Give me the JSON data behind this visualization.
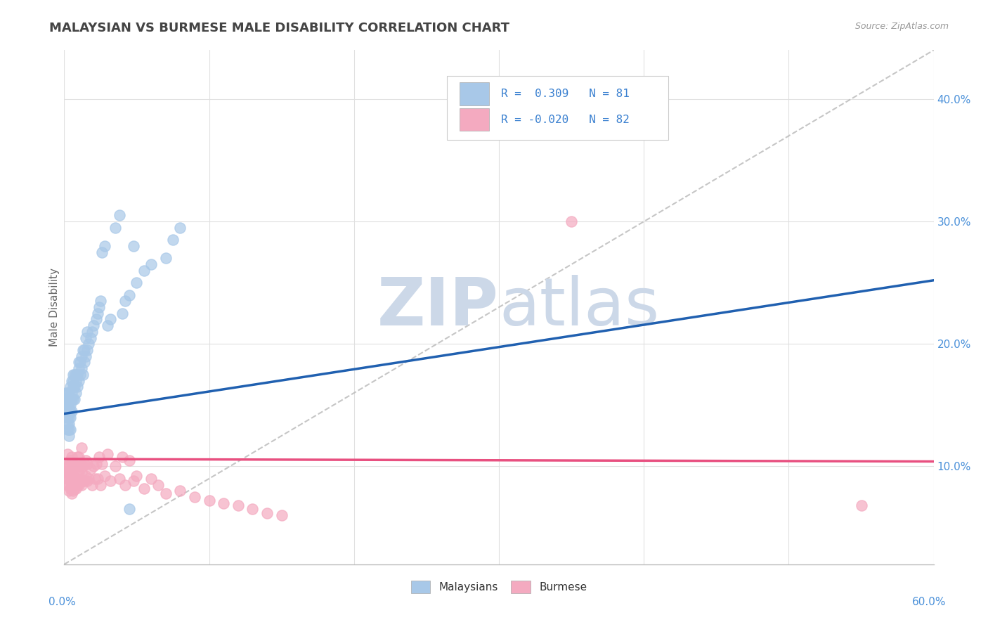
{
  "title": "MALAYSIAN VS BURMESE MALE DISABILITY CORRELATION CHART",
  "source_text": "Source: ZipAtlas.com",
  "ylabel": "Male Disability",
  "xlim": [
    0.0,
    0.6
  ],
  "ylim": [
    0.02,
    0.44
  ],
  "yticks": [
    0.1,
    0.2,
    0.3,
    0.4
  ],
  "ytick_labels": [
    "10.0%",
    "20.0%",
    "30.0%",
    "40.0%"
  ],
  "legend_r_malaysian": "0.309",
  "legend_n_malaysian": "81",
  "legend_r_burmese": "-0.020",
  "legend_n_burmese": "82",
  "malaysian_color": "#a8c8e8",
  "burmese_color": "#f4aac0",
  "trend_malaysian_color": "#2060b0",
  "trend_burmese_color": "#e85080",
  "ref_line_color": "#b8b8b8",
  "watermark_color": "#ccd8e8",
  "background_color": "#ffffff",
  "grid_color": "#e0e0e0",
  "malaysian_x": [
    0.001,
    0.001,
    0.001,
    0.001,
    0.002,
    0.002,
    0.002,
    0.002,
    0.002,
    0.002,
    0.002,
    0.003,
    0.003,
    0.003,
    0.003,
    0.003,
    0.003,
    0.003,
    0.003,
    0.004,
    0.004,
    0.004,
    0.004,
    0.004,
    0.004,
    0.005,
    0.005,
    0.005,
    0.005,
    0.006,
    0.006,
    0.006,
    0.006,
    0.007,
    0.007,
    0.007,
    0.008,
    0.008,
    0.008,
    0.009,
    0.009,
    0.01,
    0.01,
    0.01,
    0.011,
    0.011,
    0.012,
    0.012,
    0.013,
    0.013,
    0.014,
    0.014,
    0.015,
    0.015,
    0.016,
    0.016,
    0.017,
    0.018,
    0.019,
    0.02,
    0.022,
    0.023,
    0.024,
    0.025,
    0.026,
    0.028,
    0.03,
    0.032,
    0.035,
    0.038,
    0.04,
    0.042,
    0.045,
    0.048,
    0.05,
    0.055,
    0.06,
    0.07,
    0.075,
    0.08,
    0.045
  ],
  "malaysian_y": [
    0.145,
    0.15,
    0.155,
    0.16,
    0.13,
    0.135,
    0.14,
    0.145,
    0.15,
    0.155,
    0.16,
    0.125,
    0.13,
    0.135,
    0.14,
    0.145,
    0.15,
    0.155,
    0.16,
    0.13,
    0.14,
    0.145,
    0.15,
    0.155,
    0.165,
    0.145,
    0.155,
    0.16,
    0.17,
    0.155,
    0.165,
    0.17,
    0.175,
    0.155,
    0.165,
    0.175,
    0.16,
    0.17,
    0.175,
    0.165,
    0.175,
    0.17,
    0.18,
    0.185,
    0.175,
    0.185,
    0.18,
    0.19,
    0.175,
    0.195,
    0.185,
    0.195,
    0.19,
    0.205,
    0.195,
    0.21,
    0.2,
    0.205,
    0.21,
    0.215,
    0.22,
    0.225,
    0.23,
    0.235,
    0.275,
    0.28,
    0.215,
    0.22,
    0.295,
    0.305,
    0.225,
    0.235,
    0.24,
    0.28,
    0.25,
    0.26,
    0.265,
    0.27,
    0.285,
    0.295,
    0.065
  ],
  "burmese_x": [
    0.001,
    0.001,
    0.002,
    0.002,
    0.002,
    0.002,
    0.002,
    0.003,
    0.003,
    0.003,
    0.003,
    0.003,
    0.004,
    0.004,
    0.004,
    0.004,
    0.005,
    0.005,
    0.005,
    0.005,
    0.006,
    0.006,
    0.006,
    0.007,
    0.007,
    0.007,
    0.008,
    0.008,
    0.008,
    0.009,
    0.009,
    0.009,
    0.01,
    0.01,
    0.01,
    0.011,
    0.011,
    0.012,
    0.012,
    0.012,
    0.013,
    0.013,
    0.014,
    0.014,
    0.015,
    0.015,
    0.016,
    0.016,
    0.017,
    0.018,
    0.019,
    0.02,
    0.021,
    0.022,
    0.023,
    0.024,
    0.025,
    0.026,
    0.028,
    0.03,
    0.032,
    0.035,
    0.038,
    0.04,
    0.042,
    0.045,
    0.048,
    0.05,
    0.055,
    0.06,
    0.065,
    0.07,
    0.08,
    0.09,
    0.1,
    0.11,
    0.12,
    0.13,
    0.14,
    0.15,
    0.35,
    0.55
  ],
  "burmese_y": [
    0.095,
    0.1,
    0.085,
    0.09,
    0.095,
    0.1,
    0.11,
    0.08,
    0.085,
    0.09,
    0.095,
    0.1,
    0.082,
    0.088,
    0.095,
    0.105,
    0.078,
    0.085,
    0.095,
    0.108,
    0.08,
    0.092,
    0.102,
    0.082,
    0.09,
    0.1,
    0.082,
    0.09,
    0.1,
    0.085,
    0.095,
    0.108,
    0.085,
    0.095,
    0.108,
    0.088,
    0.1,
    0.085,
    0.095,
    0.115,
    0.088,
    0.1,
    0.088,
    0.102,
    0.092,
    0.105,
    0.088,
    0.102,
    0.09,
    0.098,
    0.085,
    0.1,
    0.09,
    0.102,
    0.09,
    0.108,
    0.085,
    0.102,
    0.092,
    0.11,
    0.088,
    0.1,
    0.09,
    0.108,
    0.085,
    0.105,
    0.088,
    0.092,
    0.082,
    0.09,
    0.085,
    0.078,
    0.08,
    0.075,
    0.072,
    0.07,
    0.068,
    0.065,
    0.062,
    0.06,
    0.3,
    0.068
  ],
  "trend_malaysian_x0": 0.0,
  "trend_malaysian_y0": 0.143,
  "trend_malaysian_x1": 0.6,
  "trend_malaysian_y1": 0.252,
  "trend_burmese_x0": 0.0,
  "trend_burmese_y0": 0.106,
  "trend_burmese_x1": 0.6,
  "trend_burmese_y1": 0.104
}
